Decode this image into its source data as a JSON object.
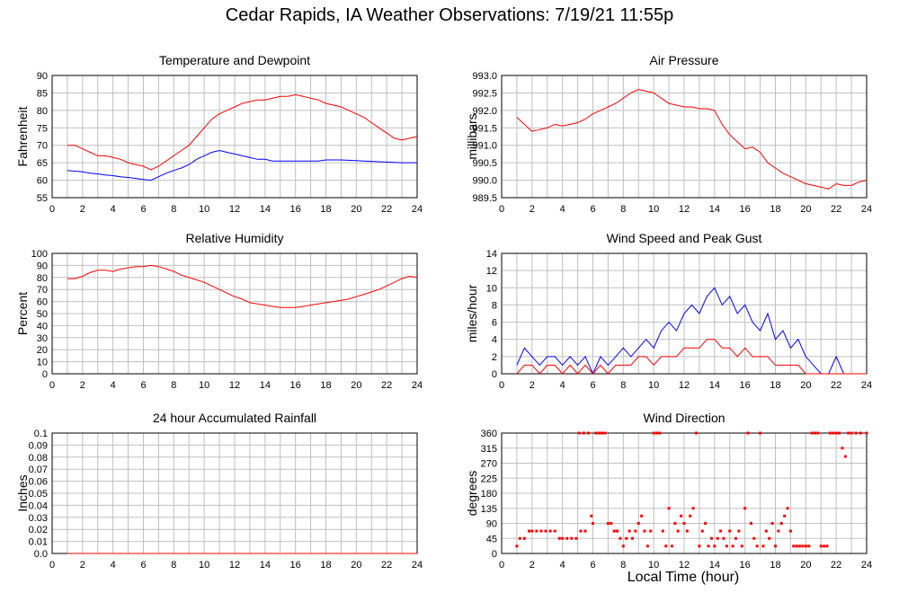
{
  "page": {
    "title": "Cedar Rapids, IA Weather Observations: 7/19/21 11:55p",
    "x_axis_title": "Local Time (hour)"
  },
  "colors": {
    "red": "#ff0000",
    "blue": "#0000ff",
    "grid": "#c0c0c0",
    "frame": "#000000"
  },
  "chart_data": [
    {
      "id": "temp",
      "type": "line",
      "title": "Temperature and Dewpoint",
      "ylabel": "Fahrenheit",
      "xlim": [
        0,
        24
      ],
      "ylim": [
        55,
        90
      ],
      "xticks": [
        0,
        2,
        4,
        6,
        8,
        10,
        12,
        14,
        16,
        18,
        20,
        22,
        24
      ],
      "yticks": [
        55,
        60,
        65,
        70,
        75,
        80,
        85,
        90
      ],
      "series": [
        {
          "color": "#ff0000",
          "x": [
            1,
            1.5,
            2,
            2.5,
            3,
            3.5,
            4,
            4.5,
            5,
            5.5,
            6,
            6.5,
            7,
            7.5,
            8,
            8.5,
            9,
            9.5,
            10,
            10.5,
            11,
            11.5,
            12,
            12.5,
            13,
            13.5,
            14,
            14.5,
            15,
            15.5,
            16,
            16.5,
            17,
            17.5,
            18,
            18.5,
            19,
            19.5,
            20,
            20.5,
            21,
            21.5,
            22,
            22.5,
            23,
            23.5,
            24
          ],
          "values": [
            70,
            70,
            69,
            68,
            67,
            67,
            66.5,
            66,
            65,
            64.5,
            64,
            63,
            64,
            65.5,
            67,
            68.5,
            70,
            72.5,
            75,
            77.5,
            79,
            80,
            81,
            82,
            82.5,
            83,
            83,
            83.5,
            84,
            84,
            84.5,
            84,
            83.5,
            83,
            82,
            81.5,
            81,
            80,
            79,
            78,
            76.5,
            75,
            73.5,
            72,
            71.5,
            72,
            72.5
          ]
        },
        {
          "color": "#0000ff",
          "x": [
            1,
            1.5,
            2,
            2.5,
            3,
            3.5,
            4,
            4.5,
            5,
            5.5,
            6,
            6.5,
            7,
            7.5,
            8,
            8.5,
            9,
            9.5,
            10,
            10.5,
            11,
            11.5,
            12,
            12.5,
            13,
            13.5,
            14,
            14.5,
            15,
            15.5,
            16,
            16.5,
            17,
            17.5,
            18,
            18.5,
            19,
            19.5,
            20,
            20.5,
            21,
            21.5,
            22,
            22.5,
            23,
            23.5,
            24
          ],
          "values": [
            62.8,
            62.6,
            62.4,
            62,
            61.8,
            61.5,
            61.3,
            61,
            60.8,
            60.5,
            60.2,
            60,
            61,
            62,
            62.8,
            63.5,
            64.5,
            66,
            67,
            68,
            68.5,
            68,
            67.5,
            67,
            66.5,
            66,
            66,
            65.5,
            65.5,
            65.5,
            65.5,
            65.5,
            65.5,
            65.5,
            65.8,
            65.8,
            65.8,
            65.7,
            65.6,
            65.5,
            65.4,
            65.3,
            65.2,
            65.1,
            65,
            65,
            65
          ]
        }
      ]
    },
    {
      "id": "pressure",
      "type": "line",
      "title": "Air Pressure",
      "ylabel": "millibars",
      "xlim": [
        0,
        24
      ],
      "ylim": [
        989.5,
        993.0
      ],
      "xticks": [
        0,
        2,
        4,
        6,
        8,
        10,
        12,
        14,
        16,
        18,
        20,
        22,
        24
      ],
      "yticks": [
        "989.5",
        "990.0",
        "990.5",
        "991.0",
        "991.5",
        "992.0",
        "992.5",
        "993.0"
      ],
      "series": [
        {
          "color": "#ff0000",
          "x": [
            1,
            1.5,
            2,
            2.5,
            3,
            3.5,
            4,
            4.5,
            5,
            5.5,
            6,
            6.5,
            7,
            7.5,
            8,
            8.5,
            9,
            9.5,
            10,
            10.5,
            11,
            11.5,
            12,
            12.5,
            13,
            13.5,
            14,
            14.5,
            15,
            15.5,
            16,
            16.5,
            17,
            17.5,
            18,
            18.5,
            19,
            19.5,
            20,
            20.5,
            21,
            21.5,
            22,
            22.5,
            23,
            23.5,
            24
          ],
          "values": [
            991.8,
            991.6,
            991.4,
            991.45,
            991.5,
            991.6,
            991.55,
            991.6,
            991.65,
            991.75,
            991.9,
            992.0,
            992.1,
            992.2,
            992.35,
            992.5,
            992.6,
            992.55,
            992.5,
            992.35,
            992.2,
            992.15,
            992.1,
            992.1,
            992.05,
            992.05,
            992.0,
            991.6,
            991.3,
            991.1,
            990.9,
            990.95,
            990.8,
            990.5,
            990.35,
            990.2,
            990.1,
            990.0,
            989.9,
            989.85,
            989.8,
            989.75,
            989.9,
            989.85,
            989.85,
            989.95,
            990.0
          ]
        }
      ]
    },
    {
      "id": "humidity",
      "type": "line",
      "title": "Relative Humidity",
      "ylabel": "Percent",
      "xlim": [
        0,
        24
      ],
      "ylim": [
        0,
        100
      ],
      "xticks": [
        0,
        2,
        4,
        6,
        8,
        10,
        12,
        14,
        16,
        18,
        20,
        22,
        24
      ],
      "yticks": [
        0,
        10,
        20,
        30,
        40,
        50,
        60,
        70,
        80,
        90,
        100
      ],
      "series": [
        {
          "color": "#ff0000",
          "x": [
            1,
            1.5,
            2,
            2.5,
            3,
            3.5,
            4,
            4.5,
            5,
            5.5,
            6,
            6.5,
            7,
            7.5,
            8,
            8.5,
            9,
            9.5,
            10,
            10.5,
            11,
            11.5,
            12,
            12.5,
            13,
            13.5,
            14,
            14.5,
            15,
            15.5,
            16,
            16.5,
            17,
            17.5,
            18,
            18.5,
            19,
            19.5,
            20,
            20.5,
            21,
            21.5,
            22,
            22.5,
            23,
            23.5,
            24
          ],
          "values": [
            79,
            79,
            81,
            84,
            86,
            86,
            85,
            87,
            88,
            89,
            89,
            90,
            89,
            87,
            85,
            82,
            80,
            78,
            76,
            73,
            70,
            67,
            64,
            62,
            59,
            58,
            57,
            56,
            55,
            55,
            55,
            56,
            57,
            58,
            59,
            60,
            61,
            62,
            64,
            66,
            68,
            70,
            73,
            76,
            79,
            81,
            80
          ]
        }
      ]
    },
    {
      "id": "wind",
      "type": "line",
      "title": "Wind Speed and Peak Gust",
      "ylabel": "miles/hour",
      "xlim": [
        0,
        24
      ],
      "ylim": [
        0,
        14
      ],
      "xticks": [
        0,
        2,
        4,
        6,
        8,
        10,
        12,
        14,
        16,
        18,
        20,
        22,
        24
      ],
      "yticks": [
        0,
        2,
        4,
        6,
        8,
        10,
        12,
        14
      ],
      "series": [
        {
          "color": "#0000ff",
          "x": [
            1,
            1.5,
            2,
            2.5,
            3,
            3.5,
            4,
            4.5,
            5,
            5.5,
            6,
            6.5,
            7,
            7.5,
            8,
            8.5,
            9,
            9.5,
            10,
            10.5,
            11,
            11.5,
            12,
            12.5,
            13,
            13.5,
            14,
            14.5,
            15,
            15.5,
            16,
            16.5,
            17,
            17.5,
            18,
            18.5,
            19,
            19.5,
            20,
            20.5,
            21,
            21.5,
            22,
            22.5,
            23,
            23.5,
            24
          ],
          "values": [
            1,
            3,
            2,
            1,
            2,
            2,
            1,
            2,
            1,
            2,
            0,
            2,
            1,
            2,
            3,
            2,
            3,
            4,
            3,
            5,
            6,
            5,
            7,
            8,
            7,
            9,
            10,
            8,
            9,
            7,
            8,
            6,
            5,
            7,
            4,
            5,
            3,
            4,
            2,
            1,
            0,
            0,
            2,
            0,
            0,
            0,
            0
          ]
        },
        {
          "color": "#ff0000",
          "x": [
            1,
            1.5,
            2,
            2.5,
            3,
            3.5,
            4,
            4.5,
            5,
            5.5,
            6,
            6.5,
            7,
            7.5,
            8,
            8.5,
            9,
            9.5,
            10,
            10.5,
            11,
            11.5,
            12,
            12.5,
            13,
            13.5,
            14,
            14.5,
            15,
            15.5,
            16,
            16.5,
            17,
            17.5,
            18,
            18.5,
            19,
            19.5,
            20,
            20.5,
            21,
            21.5,
            22,
            22.5,
            23,
            23.5,
            24
          ],
          "values": [
            0,
            1,
            1,
            0,
            1,
            1,
            0,
            1,
            0,
            1,
            0,
            1,
            0,
            1,
            1,
            1,
            2,
            2,
            1,
            2,
            2,
            2,
            3,
            3,
            3,
            4,
            4,
            3,
            3,
            2,
            3,
            2,
            2,
            2,
            1,
            1,
            1,
            1,
            0,
            0,
            0,
            0,
            0,
            0,
            0,
            0,
            0
          ]
        }
      ]
    },
    {
      "id": "rain",
      "type": "line",
      "title": "24 hour Accumulated Rainfall",
      "ylabel": "Inches",
      "xlim": [
        0,
        24
      ],
      "ylim": [
        0,
        0.1
      ],
      "xticks": [
        0,
        2,
        4,
        6,
        8,
        10,
        12,
        14,
        16,
        18,
        20,
        22,
        24
      ],
      "yticks": [
        "0.0",
        "0.01",
        "0.02",
        "0.03",
        "0.04",
        "0.05",
        "0.06",
        "0.07",
        "0.08",
        "0.09",
        "0.1"
      ],
      "series": [
        {
          "color": "#ff0000",
          "x": [
            1,
            24
          ],
          "values": [
            0,
            0
          ]
        }
      ]
    },
    {
      "id": "direction",
      "type": "scatter",
      "title": "Wind Direction",
      "ylabel": "degrees",
      "xlim": [
        0,
        24
      ],
      "ylim": [
        0,
        360
      ],
      "xticks": [
        0,
        2,
        4,
        6,
        8,
        10,
        12,
        14,
        16,
        18,
        20,
        22,
        24
      ],
      "yticks": [
        0,
        45,
        90,
        135,
        180,
        225,
        270,
        315,
        360
      ],
      "series": [
        {
          "color": "#ff0000",
          "x": [
            1,
            1.2,
            1.5,
            1.8,
            2.0,
            2.3,
            2.6,
            2.9,
            3.2,
            3.5,
            3.8,
            4.0,
            4.3,
            4.6,
            4.9,
            5.1,
            5.2,
            5.4,
            5.5,
            5.7,
            5.9,
            6.0,
            6.2,
            6.4,
            6.6,
            6.8,
            7.0,
            7.2,
            7.4,
            7.6,
            7.8,
            8.0,
            8.2,
            8.4,
            8.6,
            8.8,
            9.0,
            9.2,
            9.4,
            9.6,
            9.8,
            10.0,
            10.2,
            10.4,
            10.6,
            10.8,
            11.0,
            11.2,
            11.4,
            11.6,
            11.8,
            12.0,
            12.2,
            12.4,
            12.6,
            12.8,
            13.0,
            13.2,
            13.4,
            13.6,
            13.8,
            14.0,
            14.2,
            14.4,
            14.6,
            14.8,
            15.0,
            15.2,
            15.4,
            15.6,
            15.8,
            16.0,
            16.2,
            16.4,
            16.6,
            16.8,
            17.0,
            17.2,
            17.4,
            17.6,
            17.8,
            18.0,
            18.2,
            18.4,
            18.6,
            18.8,
            19.0,
            19.2,
            19.4,
            19.6,
            19.8,
            20.0,
            20.2,
            20.4,
            20.6,
            20.8,
            21.0,
            21.2,
            21.4,
            21.6,
            21.8,
            22.0,
            22.2,
            22.4,
            22.6,
            22.8,
            23.0,
            23.3,
            23.6,
            24.0
          ],
          "values": [
            22,
            45,
            45,
            67,
            67,
            67,
            67,
            67,
            67,
            67,
            45,
            45,
            45,
            45,
            45,
            360,
            67,
            360,
            67,
            360,
            112,
            90,
            360,
            360,
            360,
            360,
            90,
            90,
            67,
            67,
            45,
            22,
            45,
            67,
            45,
            67,
            90,
            112,
            67,
            22,
            67,
            360,
            360,
            360,
            67,
            22,
            135,
            22,
            90,
            67,
            112,
            90,
            67,
            112,
            135,
            360,
            22,
            67,
            90,
            22,
            45,
            22,
            45,
            67,
            45,
            22,
            67,
            22,
            45,
            67,
            22,
            135,
            360,
            90,
            45,
            22,
            360,
            22,
            67,
            45,
            90,
            22,
            67,
            90,
            112,
            135,
            67,
            22,
            22,
            22,
            22,
            22,
            22,
            360,
            360,
            360,
            22,
            22,
            22,
            360,
            360,
            360,
            360,
            315,
            290,
            360,
            360,
            360,
            360,
            360
          ]
        }
      ]
    }
  ]
}
